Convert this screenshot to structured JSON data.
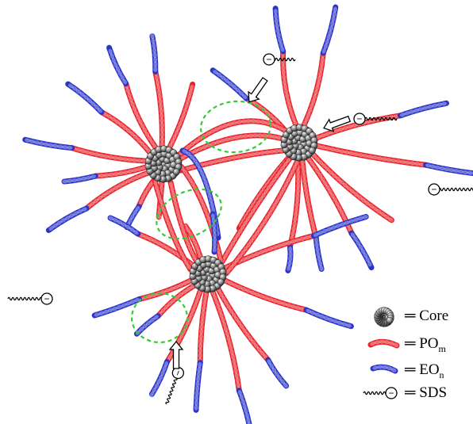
{
  "colors": {
    "po_chain": "#e8232a",
    "eo_chain": "#2a34c8",
    "core": "#7a7a7a",
    "zone": "#33cc33",
    "arrow": "#000000"
  },
  "legend": [
    {
      "key": "core",
      "symbol": "core-icon",
      "label": "Core",
      "sub": ""
    },
    {
      "key": "po",
      "symbol": "po-chain-icon",
      "label": "PO",
      "sub": "m"
    },
    {
      "key": "eo",
      "symbol": "eo-chain-icon",
      "label": "EO",
      "sub": "n"
    },
    {
      "key": "sds",
      "symbol": "sds-icon",
      "label": "SDS",
      "sub": ""
    }
  ],
  "equals_sign": "═",
  "charge_symbol": "−"
}
